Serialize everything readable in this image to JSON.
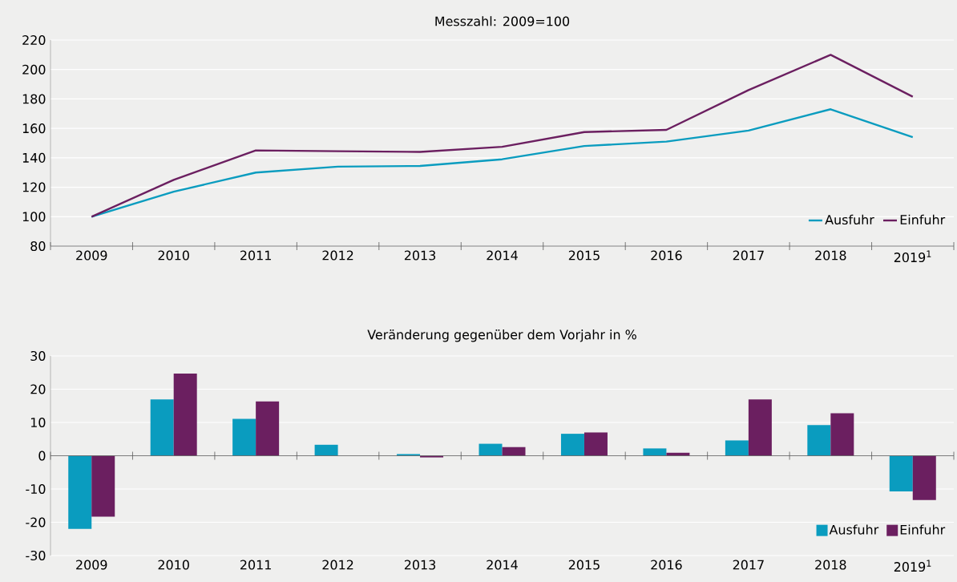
{
  "chart_data": [
    {
      "type": "line",
      "title": "Messzahl: 2009=100",
      "categories": [
        "2009",
        "2010",
        "2011",
        "2012",
        "2013",
        "2014",
        "2015",
        "2016",
        "2017",
        "2018",
        "2019$^{1}$"
      ],
      "series": [
        {
          "name": "Ausfuhr",
          "color": "#0a9cbf",
          "values": [
            100,
            117,
            130,
            134,
            134.5,
            139,
            148,
            151,
            158.5,
            173,
            154
          ]
        },
        {
          "name": "Einfuhr",
          "color": "#6b1f60",
          "values": [
            100,
            125,
            145,
            144.5,
            144,
            147.5,
            157.5,
            159,
            186,
            210,
            181.5
          ]
        }
      ],
      "ylim": [
        80,
        220
      ],
      "yticks": [
        80,
        100,
        120,
        140,
        160,
        180,
        200,
        220
      ],
      "grid": "y",
      "legend": "bottom right",
      "marker": "none",
      "line_style": "solid"
    },
    {
      "type": "bar",
      "title": "Veränderung gegenüber dem Vorjahr in %",
      "categories": [
        "2009",
        "2010",
        "2011",
        "2012",
        "2013",
        "2014",
        "2015",
        "2016",
        "2017",
        "2018",
        "2019$^{1}$"
      ],
      "series": [
        {
          "name": "Ausfuhr",
          "color": "#0a9cbf",
          "values": [
            -22,
            16.9,
            11.1,
            3.3,
            0.5,
            3.6,
            6.6,
            2.2,
            4.6,
            9.2,
            -10.7
          ]
        },
        {
          "name": "Einfuhr",
          "color": "#6b1f60",
          "values": [
            -18.3,
            24.7,
            16.3,
            0,
            -0.5,
            2.6,
            7.0,
            0.9,
            16.9,
            12.8,
            -13.3
          ]
        }
      ],
      "ylim": [
        -30,
        30
      ],
      "yticks": [
        -30,
        -20,
        -10,
        0,
        10,
        20,
        30
      ],
      "grid": "y",
      "legend": "bottom right"
    }
  ]
}
